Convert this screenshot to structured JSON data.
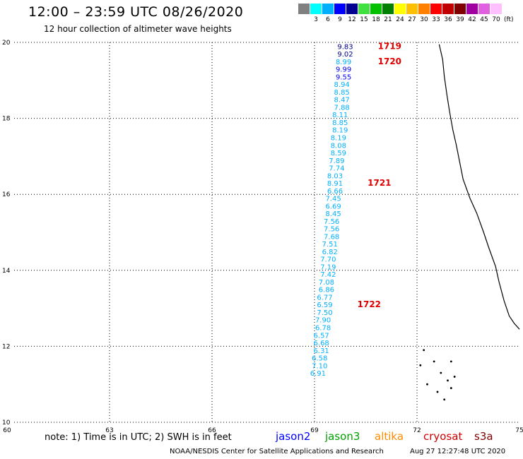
{
  "header": {
    "title": "12:00 – 23:59 UTC 08/26/2020",
    "subtitle": "12 hour collection of altimeter wave heights"
  },
  "legend": {
    "units": "(ft)",
    "bins": [
      {
        "label": "",
        "color": "#808080"
      },
      {
        "label": "3",
        "color": "#00ffff"
      },
      {
        "label": "6",
        "color": "#00b0ff"
      },
      {
        "label": "9",
        "color": "#0000ff"
      },
      {
        "label": "12",
        "color": "#000090"
      },
      {
        "label": "15",
        "color": "#40e040"
      },
      {
        "label": "18",
        "color": "#00c000"
      },
      {
        "label": "21",
        "color": "#008000"
      },
      {
        "label": "24",
        "color": "#ffff00"
      },
      {
        "label": "27",
        "color": "#ffc000"
      },
      {
        "label": "30",
        "color": "#ff8000"
      },
      {
        "label": "33",
        "color": "#ff0000"
      },
      {
        "label": "36",
        "color": "#c00000"
      },
      {
        "label": "39",
        "color": "#800000"
      },
      {
        "label": "42",
        "color": "#a000a0"
      },
      {
        "label": "45",
        "color": "#e060e0"
      },
      {
        "label": "70",
        "color": "#ffc0ff"
      }
    ]
  },
  "axes": {
    "lon_ticks": [
      "60",
      "63",
      "66",
      "69",
      "72",
      "75"
    ],
    "lat_ticks": [
      "10",
      "12",
      "14",
      "16",
      "18",
      "20"
    ],
    "lon_range": [
      60,
      75
    ],
    "lat_range": [
      10,
      20
    ]
  },
  "colors": {
    "grid": "#000000",
    "coast": "#000000",
    "time_label": "#e00000"
  },
  "chart_data": {
    "type": "scatter",
    "x_unit": "degrees longitude",
    "y_unit": "degrees latitude",
    "points": [
      {
        "lon": 69.9,
        "lat": 19.9,
        "swh": "9.83",
        "color": "#000090"
      },
      {
        "lon": 69.9,
        "lat": 19.7,
        "swh": "9.02",
        "color": "#000090"
      },
      {
        "lon": 69.85,
        "lat": 19.5,
        "swh": "8.99",
        "color": "#00b0ff"
      },
      {
        "lon": 69.85,
        "lat": 19.3,
        "swh": "9.99",
        "color": "#0000ff"
      },
      {
        "lon": 69.85,
        "lat": 19.1,
        "swh": "9.55",
        "color": "#0000ff"
      },
      {
        "lon": 69.8,
        "lat": 18.9,
        "swh": "8.94",
        "color": "#00b0ff"
      },
      {
        "lon": 69.8,
        "lat": 18.7,
        "swh": "8.85",
        "color": "#00b0ff"
      },
      {
        "lon": 69.8,
        "lat": 18.5,
        "swh": "8.47",
        "color": "#00b0ff"
      },
      {
        "lon": 69.8,
        "lat": 18.3,
        "swh": "7.88",
        "color": "#00b0ff"
      },
      {
        "lon": 69.75,
        "lat": 18.1,
        "swh": "8.11",
        "color": "#00b0ff"
      },
      {
        "lon": 69.75,
        "lat": 17.9,
        "swh": "8.85",
        "color": "#00b0ff"
      },
      {
        "lon": 69.75,
        "lat": 17.7,
        "swh": "8.19",
        "color": "#00b0ff"
      },
      {
        "lon": 69.7,
        "lat": 17.5,
        "swh": "8.19",
        "color": "#00b0ff"
      },
      {
        "lon": 69.7,
        "lat": 17.3,
        "swh": "8.08",
        "color": "#00b0ff"
      },
      {
        "lon": 69.7,
        "lat": 17.1,
        "swh": "8.59",
        "color": "#00b0ff"
      },
      {
        "lon": 69.65,
        "lat": 16.9,
        "swh": "7.89",
        "color": "#00b0ff"
      },
      {
        "lon": 69.65,
        "lat": 16.7,
        "swh": "7.74",
        "color": "#00b0ff"
      },
      {
        "lon": 69.6,
        "lat": 16.5,
        "swh": "8.03",
        "color": "#00b0ff"
      },
      {
        "lon": 69.6,
        "lat": 16.3,
        "swh": "8.91",
        "color": "#00b0ff"
      },
      {
        "lon": 69.6,
        "lat": 16.1,
        "swh": "6.66",
        "color": "#00b0ff"
      },
      {
        "lon": 69.55,
        "lat": 15.9,
        "swh": "7.45",
        "color": "#00b0ff"
      },
      {
        "lon": 69.55,
        "lat": 15.7,
        "swh": "6.69",
        "color": "#00b0ff"
      },
      {
        "lon": 69.55,
        "lat": 15.5,
        "swh": "8.45",
        "color": "#00b0ff"
      },
      {
        "lon": 69.5,
        "lat": 15.3,
        "swh": "7.56",
        "color": "#00b0ff"
      },
      {
        "lon": 69.5,
        "lat": 15.1,
        "swh": "7.56",
        "color": "#00b0ff"
      },
      {
        "lon": 69.5,
        "lat": 14.9,
        "swh": "7.68",
        "color": "#00b0ff"
      },
      {
        "lon": 69.45,
        "lat": 14.7,
        "swh": "7.51",
        "color": "#00b0ff"
      },
      {
        "lon": 69.45,
        "lat": 14.5,
        "swh": "6.82",
        "color": "#00b0ff"
      },
      {
        "lon": 69.4,
        "lat": 14.3,
        "swh": "7.70",
        "color": "#00b0ff"
      },
      {
        "lon": 69.4,
        "lat": 14.1,
        "swh": "7.19",
        "color": "#00b0ff"
      },
      {
        "lon": 69.4,
        "lat": 13.9,
        "swh": "7.42",
        "color": "#00b0ff"
      },
      {
        "lon": 69.35,
        "lat": 13.7,
        "swh": "7.08",
        "color": "#00b0ff"
      },
      {
        "lon": 69.35,
        "lat": 13.5,
        "swh": "6.86",
        "color": "#00b0ff"
      },
      {
        "lon": 69.3,
        "lat": 13.3,
        "swh": "6.77",
        "color": "#00b0ff"
      },
      {
        "lon": 69.3,
        "lat": 13.1,
        "swh": "6.59",
        "color": "#00b0ff"
      },
      {
        "lon": 69.3,
        "lat": 12.9,
        "swh": "7.50",
        "color": "#00b0ff"
      },
      {
        "lon": 69.25,
        "lat": 12.7,
        "swh": "7.90",
        "color": "#00b0ff"
      },
      {
        "lon": 69.25,
        "lat": 12.5,
        "swh": "6.78",
        "color": "#00b0ff"
      },
      {
        "lon": 69.2,
        "lat": 12.3,
        "swh": "6.57",
        "color": "#00b0ff"
      },
      {
        "lon": 69.2,
        "lat": 12.1,
        "swh": "6.68",
        "color": "#00b0ff"
      },
      {
        "lon": 69.2,
        "lat": 11.9,
        "swh": "6.31",
        "color": "#00b0ff"
      },
      {
        "lon": 69.15,
        "lat": 11.7,
        "swh": "6.58",
        "color": "#00b0ff"
      },
      {
        "lon": 69.15,
        "lat": 11.5,
        "swh": "7.10",
        "color": "#00b0ff"
      },
      {
        "lon": 69.1,
        "lat": 11.3,
        "swh": "6.91",
        "color": "#00b0ff"
      }
    ],
    "time_labels": [
      {
        "text": "1719",
        "lon": 71.2,
        "lat": 19.9
      },
      {
        "text": "1720",
        "lon": 71.2,
        "lat": 19.5
      },
      {
        "text": "1721",
        "lon": 70.9,
        "lat": 16.3
      },
      {
        "text": "1722",
        "lon": 70.6,
        "lat": 13.1
      }
    ],
    "coastline": [
      [
        72.65,
        19.95
      ],
      [
        72.75,
        19.55
      ],
      [
        72.8,
        19.1
      ],
      [
        72.88,
        18.6
      ],
      [
        72.95,
        18.2
      ],
      [
        73.05,
        17.7
      ],
      [
        73.15,
        17.3
      ],
      [
        73.25,
        16.85
      ],
      [
        73.35,
        16.4
      ],
      [
        73.55,
        15.9
      ],
      [
        73.75,
        15.5
      ],
      [
        73.95,
        15.0
      ],
      [
        74.1,
        14.6
      ],
      [
        74.3,
        14.1
      ],
      [
        74.4,
        13.7
      ],
      [
        74.55,
        13.2
      ],
      [
        74.7,
        12.8
      ],
      [
        74.85,
        12.6
      ],
      [
        75.0,
        12.45
      ]
    ],
    "islands": [
      [
        72.2,
        11.9
      ],
      [
        72.1,
        11.5
      ],
      [
        72.3,
        11.0
      ],
      [
        72.7,
        11.3
      ],
      [
        72.9,
        11.1
      ],
      [
        73.0,
        11.6
      ],
      [
        73.1,
        11.2
      ],
      [
        72.6,
        10.8
      ],
      [
        72.8,
        10.6
      ],
      [
        73.0,
        10.9
      ],
      [
        72.5,
        11.6
      ]
    ]
  },
  "footer": {
    "note": "note:  1) Time is in UTC;  2) SWH is in feet",
    "missions": [
      {
        "name": "jason2",
        "color": "#0000ff"
      },
      {
        "name": "jason3",
        "color": "#00a000"
      },
      {
        "name": "altika",
        "color": "#ff8c00"
      },
      {
        "name": "cryosat",
        "color": "#d00000"
      },
      {
        "name": "s3a",
        "color": "#800000"
      }
    ],
    "credit": "NOAA/NESDIS Center for Satellite Applications and Research",
    "timestamp": "Aug 27 12:27:48 UTC 2020"
  }
}
